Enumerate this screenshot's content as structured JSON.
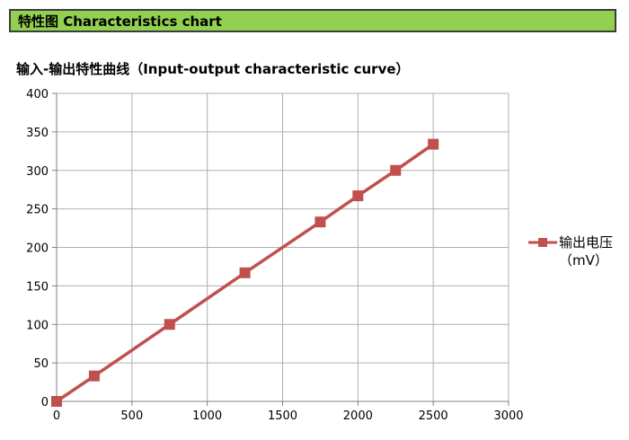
{
  "header": {
    "title": "特性图 Characteristics chart"
  },
  "colors": {
    "header_bg": "#92d050",
    "series": "#c0504d",
    "grid": "#b0b0b0"
  },
  "chart_data": {
    "type": "line",
    "title": "输入-输出特性曲线（Input-output characteristic curve）",
    "xlabel": "",
    "ylabel": "",
    "xlim": [
      0,
      3000
    ],
    "ylim": [
      0,
      400
    ],
    "xticks": [
      0,
      500,
      1000,
      1500,
      2000,
      2500,
      3000
    ],
    "yticks": [
      0,
      50,
      100,
      150,
      200,
      250,
      300,
      350,
      400
    ],
    "grid": true,
    "legend_position": "right",
    "series": [
      {
        "name": "输出电压（mV）",
        "marker": "square",
        "x": [
          0,
          250,
          750,
          1250,
          1750,
          2000,
          2250,
          2500
        ],
        "y": [
          0,
          33,
          100,
          167,
          233,
          267,
          300,
          334
        ]
      }
    ]
  }
}
